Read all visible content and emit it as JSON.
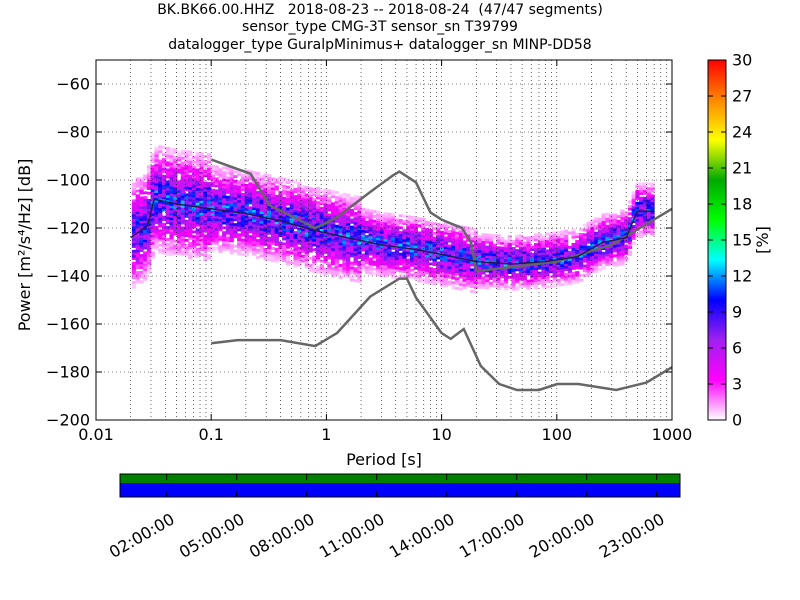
{
  "title_lines": [
    "BK.BK66.00.HHZ   2018-08-23 -- 2018-08-24  (47/47 segments)",
    "sensor_type CMG-3T sensor_sn T39799",
    "datalogger_type GuralpMinimus+ datalogger_sn MINP-DD58"
  ],
  "chart_data": {
    "type": "heatmap",
    "xlabel": "Period [s]",
    "ylabel": "Power [m²/s⁴/Hz] [dB]",
    "xscale": "log",
    "xlim": [
      0.01,
      1000
    ],
    "ylim": [
      -200,
      -50
    ],
    "xticks": [
      {
        "value": 0.01,
        "label": "0.01"
      },
      {
        "value": 0.1,
        "label": "0.1"
      },
      {
        "value": 1,
        "label": "1"
      },
      {
        "value": 10,
        "label": "10"
      },
      {
        "value": 100,
        "label": "100"
      },
      {
        "value": 1000,
        "label": "1000"
      }
    ],
    "yticks": [
      -200,
      -180,
      -160,
      -140,
      -120,
      -100,
      -80,
      -60
    ],
    "grid": true,
    "colorbar": {
      "label": "[%]",
      "min": 0,
      "max": 30,
      "ticks": [
        0,
        3,
        6,
        9,
        12,
        15,
        18,
        21,
        24,
        27,
        30
      ],
      "colors": [
        "#ffffff",
        "#ff00ff",
        "#a020f0",
        "#0000ff",
        "#00ffff",
        "#00ff00",
        "#00aa00",
        "#ffff00",
        "#ff8800",
        "#ff0000"
      ]
    },
    "series": [
      {
        "name": "",
        "kind": "noise-model-high",
        "color": "#666666",
        "x": [
          0.1,
          0.22,
          0.32,
          0.8,
          1.2,
          2.4,
          3.8,
          4.3,
          6.0,
          8.0,
          10,
          15,
          18,
          20,
          100,
          300,
          1000
        ],
        "y": [
          -91.5,
          -97.4,
          -110.5,
          -120.0,
          -116.0,
          -105.0,
          -98.0,
          -96.5,
          -101.0,
          -113.5,
          -116.5,
          -120.0,
          -126.0,
          -138.0,
          -134.0,
          -127.0,
          -112.0
        ]
      },
      {
        "name": "",
        "kind": "noise-model-low",
        "color": "#666666",
        "x": [
          0.1,
          0.17,
          0.4,
          0.8,
          1.24,
          2.4,
          4.3,
          5.0,
          6.0,
          10,
          12,
          15.6,
          21.9,
          31.6,
          45,
          70,
          101,
          154,
          328,
          600,
          1000
        ],
        "y": [
          -168.0,
          -166.7,
          -166.7,
          -169.2,
          -163.7,
          -148.6,
          -141.1,
          -141.1,
          -149.0,
          -163.8,
          -166.2,
          -162.1,
          -177.5,
          -185.0,
          -187.5,
          -187.5,
          -185.0,
          -185.0,
          -187.5,
          -184.4,
          -178.0
        ]
      },
      {
        "name": "",
        "kind": "mode",
        "color": "#1a1a4d",
        "x": [
          0.02,
          0.028,
          0.032,
          0.05,
          0.1,
          0.2,
          0.4,
          0.8,
          1.5,
          3,
          6,
          10,
          20,
          40,
          80,
          150,
          250,
          400,
          500,
          700
        ],
        "y": [
          -124.0,
          -119.0,
          -108.0,
          -110.0,
          -112.0,
          -114.0,
          -117.0,
          -121.0,
          -124.0,
          -127.0,
          -129.0,
          -131.0,
          -134.0,
          -135.0,
          -134.0,
          -132.0,
          -126.0,
          -124.0,
          -113.0,
          -113.0
        ]
      }
    ]
  },
  "timeline": {
    "tick_labels": [
      "02:00:00",
      "05:00:00",
      "08:00:00",
      "11:00:00",
      "14:00:00",
      "17:00:00",
      "20:00:00",
      "23:00:00"
    ],
    "tick_hours": [
      2,
      5,
      8,
      11,
      14,
      17,
      20,
      23
    ],
    "start_hour": 0,
    "end_hour": 24,
    "coverage_color": "#008000",
    "used_color": "#0000ff"
  }
}
